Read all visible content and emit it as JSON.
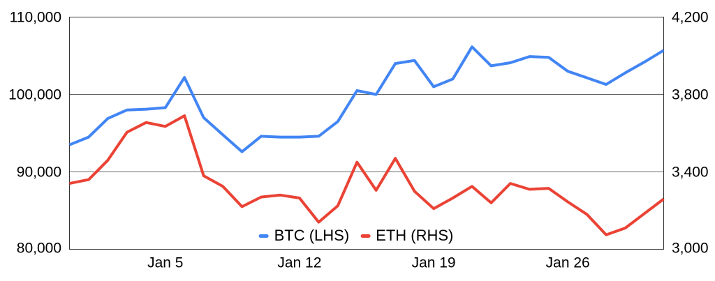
{
  "chart_data": {
    "type": "line",
    "title": "",
    "grid": true,
    "legend_position": "bottom-center-inside",
    "x": [
      "Dec 31",
      "Jan 1",
      "Jan 2",
      "Jan 3",
      "Jan 4",
      "Jan 5",
      "Jan 6",
      "Jan 7",
      "Jan 8",
      "Jan 9",
      "Jan 10",
      "Jan 11",
      "Jan 12",
      "Jan 13",
      "Jan 14",
      "Jan 15",
      "Jan 16",
      "Jan 17",
      "Jan 18",
      "Jan 19",
      "Jan 20",
      "Jan 21",
      "Jan 22",
      "Jan 23",
      "Jan 24",
      "Jan 25",
      "Jan 26",
      "Jan 27",
      "Jan 28",
      "Jan 29",
      "Jan 30",
      "Jan 31"
    ],
    "x_tick_labels": [
      "Jan 5",
      "Jan 12",
      "Jan 19",
      "Jan 26"
    ],
    "x_tick_indices": [
      5,
      12,
      19,
      26
    ],
    "series": [
      {
        "name": "BTC (LHS)",
        "axis": "left",
        "color": "#4285F4",
        "values": [
          93500,
          94500,
          96900,
          98000,
          98100,
          98300,
          102200,
          97000,
          94800,
          92600,
          94600,
          94500,
          94500,
          94600,
          96500,
          100500,
          100000,
          104000,
          104400,
          101000,
          102000,
          106150,
          103700,
          104100,
          104900,
          104800,
          103000,
          102150,
          101300,
          102800,
          104200,
          105700
        ]
      },
      {
        "name": "ETH (RHS)",
        "axis": "right",
        "color": "#EA4335",
        "values": [
          3340,
          3360,
          3460,
          3605,
          3655,
          3635,
          3690,
          3380,
          3325,
          3220,
          3270,
          3280,
          3265,
          3140,
          3225,
          3450,
          3305,
          3470,
          3300,
          3210,
          3265,
          3325,
          3240,
          3340,
          3310,
          3315,
          3245,
          3180,
          3075,
          3110,
          3185,
          3260
        ]
      }
    ],
    "y_axis_left": {
      "min": 80000,
      "max": 110000,
      "ticks": [
        "110,000",
        "100,000",
        "90,000",
        "80,000"
      ],
      "tick_values": [
        110000,
        100000,
        90000,
        80000
      ],
      "gridline_values": [
        100000,
        90000
      ]
    },
    "y_axis_right": {
      "min": 3000,
      "max": 4200,
      "ticks": [
        "4,200",
        "3,800",
        "3,400",
        "3,000"
      ],
      "tick_values": [
        4200,
        3800,
        3400,
        3000
      ]
    },
    "gridline_color": "#666666",
    "border_color": "#333333"
  }
}
